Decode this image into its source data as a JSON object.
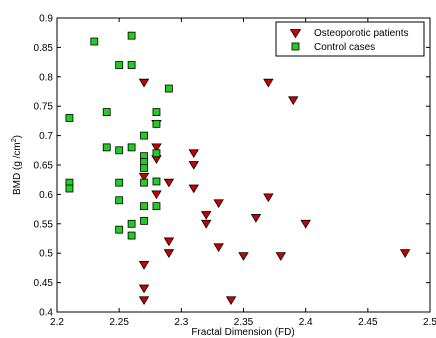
{
  "chart_data": {
    "type": "scatter",
    "xlabel": "Fractal Dimension (FD)",
    "ylabel_main": "BMD (g /cm",
    "ylabel_sup": "2",
    "ylabel_close": ")",
    "xlim": [
      2.2,
      2.5
    ],
    "ylim": [
      0.4,
      0.9
    ],
    "xticks": [
      "2.2",
      "2.25",
      "2.3",
      "2.35",
      "2.4",
      "2.45",
      "2.5"
    ],
    "yticks": [
      "0.4",
      "0.45",
      "0.5",
      "0.55",
      "0.6",
      "0.65",
      "0.7",
      "0.75",
      "0.8",
      "0.85",
      "0.9"
    ],
    "grid": false,
    "legend_position": "top-right",
    "series": [
      {
        "name": "Osteoporotic patients",
        "marker": "triangle-down",
        "color": "#cc0000",
        "points": [
          [
            2.27,
            0.79
          ],
          [
            2.27,
            0.63
          ],
          [
            2.27,
            0.48
          ],
          [
            2.27,
            0.44
          ],
          [
            2.27,
            0.42
          ],
          [
            2.28,
            0.72
          ],
          [
            2.28,
            0.68
          ],
          [
            2.28,
            0.66
          ],
          [
            2.28,
            0.6
          ],
          [
            2.29,
            0.62
          ],
          [
            2.29,
            0.52
          ],
          [
            2.29,
            0.5
          ],
          [
            2.31,
            0.67
          ],
          [
            2.31,
            0.65
          ],
          [
            2.31,
            0.61
          ],
          [
            2.32,
            0.565
          ],
          [
            2.32,
            0.55
          ],
          [
            2.33,
            0.585
          ],
          [
            2.33,
            0.51
          ],
          [
            2.34,
            0.42
          ],
          [
            2.35,
            0.495
          ],
          [
            2.36,
            0.56
          ],
          [
            2.37,
            0.79
          ],
          [
            2.37,
            0.595
          ],
          [
            2.38,
            0.495
          ],
          [
            2.39,
            0.76
          ],
          [
            2.4,
            0.55
          ],
          [
            2.48,
            0.5
          ]
        ]
      },
      {
        "name": "Control cases",
        "marker": "square",
        "color": "#22cc22",
        "points": [
          [
            2.21,
            0.73
          ],
          [
            2.21,
            0.62
          ],
          [
            2.21,
            0.61
          ],
          [
            2.23,
            0.86
          ],
          [
            2.24,
            0.74
          ],
          [
            2.24,
            0.68
          ],
          [
            2.25,
            0.82
          ],
          [
            2.25,
            0.675
          ],
          [
            2.25,
            0.62
          ],
          [
            2.25,
            0.59
          ],
          [
            2.25,
            0.54
          ],
          [
            2.26,
            0.87
          ],
          [
            2.26,
            0.82
          ],
          [
            2.26,
            0.68
          ],
          [
            2.26,
            0.55
          ],
          [
            2.26,
            0.53
          ],
          [
            2.27,
            0.7
          ],
          [
            2.27,
            0.665
          ],
          [
            2.27,
            0.655
          ],
          [
            2.27,
            0.645
          ],
          [
            2.27,
            0.62
          ],
          [
            2.27,
            0.58
          ],
          [
            2.27,
            0.555
          ],
          [
            2.28,
            0.74
          ],
          [
            2.28,
            0.72
          ],
          [
            2.28,
            0.67
          ],
          [
            2.28,
            0.622
          ],
          [
            2.28,
            0.58
          ],
          [
            2.29,
            0.78
          ]
        ]
      }
    ]
  }
}
